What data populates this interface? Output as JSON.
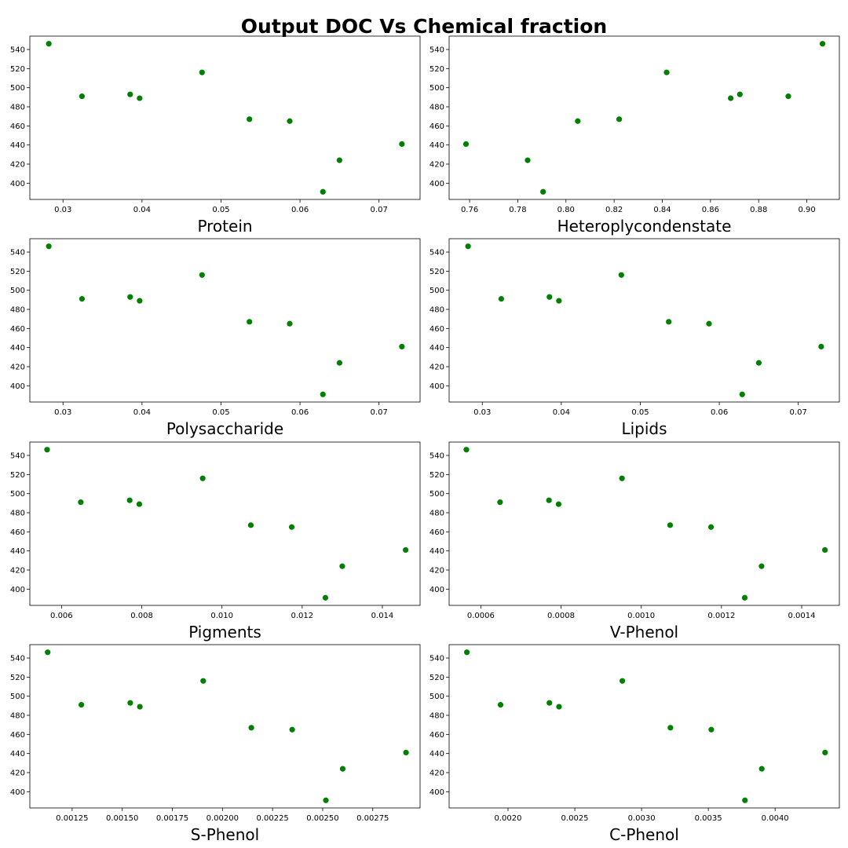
{
  "figure": {
    "title": "Output DOC Vs Chemical fraction",
    "marker_color": "#008000",
    "background": "#ffffff"
  },
  "chart_data": [
    {
      "type": "scatter",
      "xlabel": "Protein",
      "ylabel": "",
      "xlim": [
        0.0258,
        0.0752
      ],
      "ylim": [
        383,
        554
      ],
      "xticks": [
        0.03,
        0.04,
        0.05,
        0.06,
        0.07
      ],
      "xtick_labels": [
        "0.03",
        "0.04",
        "0.05",
        "0.06",
        "0.07"
      ],
      "yticks": [
        400,
        420,
        440,
        460,
        480,
        500,
        520,
        540
      ],
      "ytick_labels": [
        "400",
        "420",
        "440",
        "460",
        "480",
        "500",
        "520",
        "540"
      ],
      "x": [
        0.0282,
        0.0324,
        0.0385,
        0.0397,
        0.0476,
        0.0536,
        0.0587,
        0.0629,
        0.065,
        0.0729
      ],
      "y": [
        546,
        491,
        493,
        489,
        516,
        467,
        465,
        391,
        424,
        441
      ]
    },
    {
      "type": "scatter",
      "xlabel": "Heteroplycondenstate",
      "ylabel": "",
      "xlim": [
        0.7515,
        0.9135
      ],
      "ylim": [
        383,
        554
      ],
      "xticks": [
        0.76,
        0.78,
        0.8,
        0.82,
        0.84,
        0.86,
        0.88,
        0.9
      ],
      "xtick_labels": [
        "0.76",
        "0.78",
        "0.80",
        "0.82",
        "0.84",
        "0.86",
        "0.88",
        "0.90"
      ],
      "yticks": [
        400,
        420,
        440,
        460,
        480,
        500,
        520,
        540
      ],
      "ytick_labels": [
        "400",
        "420",
        "440",
        "460",
        "480",
        "500",
        "520",
        "540"
      ],
      "x": [
        0.9065,
        0.8923,
        0.8722,
        0.8684,
        0.8418,
        0.8221,
        0.8049,
        0.7905,
        0.7841,
        0.7585
      ],
      "y": [
        546,
        491,
        493,
        489,
        516,
        467,
        465,
        391,
        424,
        441
      ]
    },
    {
      "type": "scatter",
      "xlabel": "Polysaccharide",
      "ylabel": "",
      "xlim": [
        0.0258,
        0.0752
      ],
      "ylim": [
        383,
        554
      ],
      "xticks": [
        0.03,
        0.04,
        0.05,
        0.06,
        0.07
      ],
      "xtick_labels": [
        "0.03",
        "0.04",
        "0.05",
        "0.06",
        "0.07"
      ],
      "yticks": [
        400,
        420,
        440,
        460,
        480,
        500,
        520,
        540
      ],
      "ytick_labels": [
        "400",
        "420",
        "440",
        "460",
        "480",
        "500",
        "520",
        "540"
      ],
      "x": [
        0.0282,
        0.0324,
        0.0385,
        0.0397,
        0.0476,
        0.0536,
        0.0587,
        0.0629,
        0.065,
        0.0729
      ],
      "y": [
        546,
        491,
        493,
        489,
        516,
        467,
        465,
        391,
        424,
        441
      ]
    },
    {
      "type": "scatter",
      "xlabel": "Lipids",
      "ylabel": "",
      "xlim": [
        0.0258,
        0.0752
      ],
      "ylim": [
        383,
        554
      ],
      "xticks": [
        0.03,
        0.04,
        0.05,
        0.06,
        0.07
      ],
      "xtick_labels": [
        "0.03",
        "0.04",
        "0.05",
        "0.06",
        "0.07"
      ],
      "yticks": [
        400,
        420,
        440,
        460,
        480,
        500,
        520,
        540
      ],
      "ytick_labels": [
        "400",
        "420",
        "440",
        "460",
        "480",
        "500",
        "520",
        "540"
      ],
      "x": [
        0.0282,
        0.0324,
        0.0385,
        0.0397,
        0.0476,
        0.0536,
        0.0587,
        0.0629,
        0.065,
        0.0729
      ],
      "y": [
        546,
        491,
        493,
        489,
        516,
        467,
        465,
        391,
        424,
        441
      ]
    },
    {
      "type": "scatter",
      "xlabel": "Pigments",
      "ylabel": "",
      "xlim": [
        0.00521,
        0.01494
      ],
      "ylim": [
        383,
        554
      ],
      "xticks": [
        0.006,
        0.008,
        0.01,
        0.012,
        0.014
      ],
      "xtick_labels": [
        "0.006",
        "0.008",
        "0.010",
        "0.012",
        "0.014"
      ],
      "yticks": [
        400,
        420,
        440,
        460,
        480,
        500,
        520,
        540
      ],
      "ytick_labels": [
        "400",
        "420",
        "440",
        "460",
        "480",
        "500",
        "520",
        "540"
      ],
      "x": [
        0.00564,
        0.00648,
        0.0077,
        0.00794,
        0.00952,
        0.01072,
        0.01174,
        0.01258,
        0.013,
        0.01458
      ],
      "y": [
        546,
        491,
        493,
        489,
        516,
        467,
        465,
        391,
        424,
        441
      ]
    },
    {
      "type": "scatter",
      "xlabel": "V-Phenol",
      "ylabel": "",
      "xlim": [
        0.000521,
        0.001494
      ],
      "ylim": [
        383,
        554
      ],
      "xticks": [
        0.0006,
        0.0008,
        0.001,
        0.0012,
        0.0014
      ],
      "xtick_labels": [
        "0.0006",
        "0.0008",
        "0.0010",
        "0.0012",
        "0.0014"
      ],
      "yticks": [
        400,
        420,
        440,
        460,
        480,
        500,
        520,
        540
      ],
      "ytick_labels": [
        "400",
        "420",
        "440",
        "460",
        "480",
        "500",
        "520",
        "540"
      ],
      "x": [
        0.000564,
        0.000648,
        0.00077,
        0.000794,
        0.000952,
        0.001072,
        0.001174,
        0.001258,
        0.0013,
        0.001458
      ],
      "y": [
        546,
        491,
        493,
        489,
        516,
        467,
        465,
        391,
        424,
        441
      ]
    },
    {
      "type": "scatter",
      "xlabel": "S-Phenol",
      "ylabel": "",
      "xlim": [
        0.001039,
        0.002986
      ],
      "ylim": [
        383,
        554
      ],
      "xticks": [
        0.00125,
        0.0015,
        0.00175,
        0.002,
        0.00225,
        0.0025,
        0.00275
      ],
      "xtick_labels": [
        "0.00125",
        "0.00150",
        "0.00175",
        "0.00200",
        "0.00225",
        "0.00250",
        "0.00275"
      ],
      "yticks": [
        400,
        420,
        440,
        460,
        480,
        500,
        520,
        540
      ],
      "ytick_labels": [
        "400",
        "420",
        "440",
        "460",
        "480",
        "500",
        "520",
        "540"
      ],
      "x": [
        0.001128,
        0.001296,
        0.00154,
        0.001588,
        0.001904,
        0.002144,
        0.002348,
        0.002516,
        0.0026,
        0.002916
      ],
      "y": [
        546,
        491,
        493,
        489,
        516,
        467,
        465,
        391,
        424,
        441
      ]
    },
    {
      "type": "scatter",
      "xlabel": "C-Phenol",
      "ylabel": "",
      "xlim": [
        0.001559,
        0.004481
      ],
      "ylim": [
        383,
        554
      ],
      "xticks": [
        0.002,
        0.0025,
        0.003,
        0.0035,
        0.004
      ],
      "xtick_labels": [
        "0.0020",
        "0.0025",
        "0.0030",
        "0.0035",
        "0.0040"
      ],
      "yticks": [
        400,
        420,
        440,
        460,
        480,
        500,
        520,
        540
      ],
      "ytick_labels": [
        "400",
        "420",
        "440",
        "460",
        "480",
        "500",
        "520",
        "540"
      ],
      "x": [
        0.001692,
        0.001944,
        0.00231,
        0.002382,
        0.002856,
        0.003216,
        0.003522,
        0.003774,
        0.0039,
        0.004374
      ],
      "y": [
        546,
        491,
        493,
        489,
        516,
        467,
        465,
        391,
        424,
        441
      ]
    }
  ]
}
